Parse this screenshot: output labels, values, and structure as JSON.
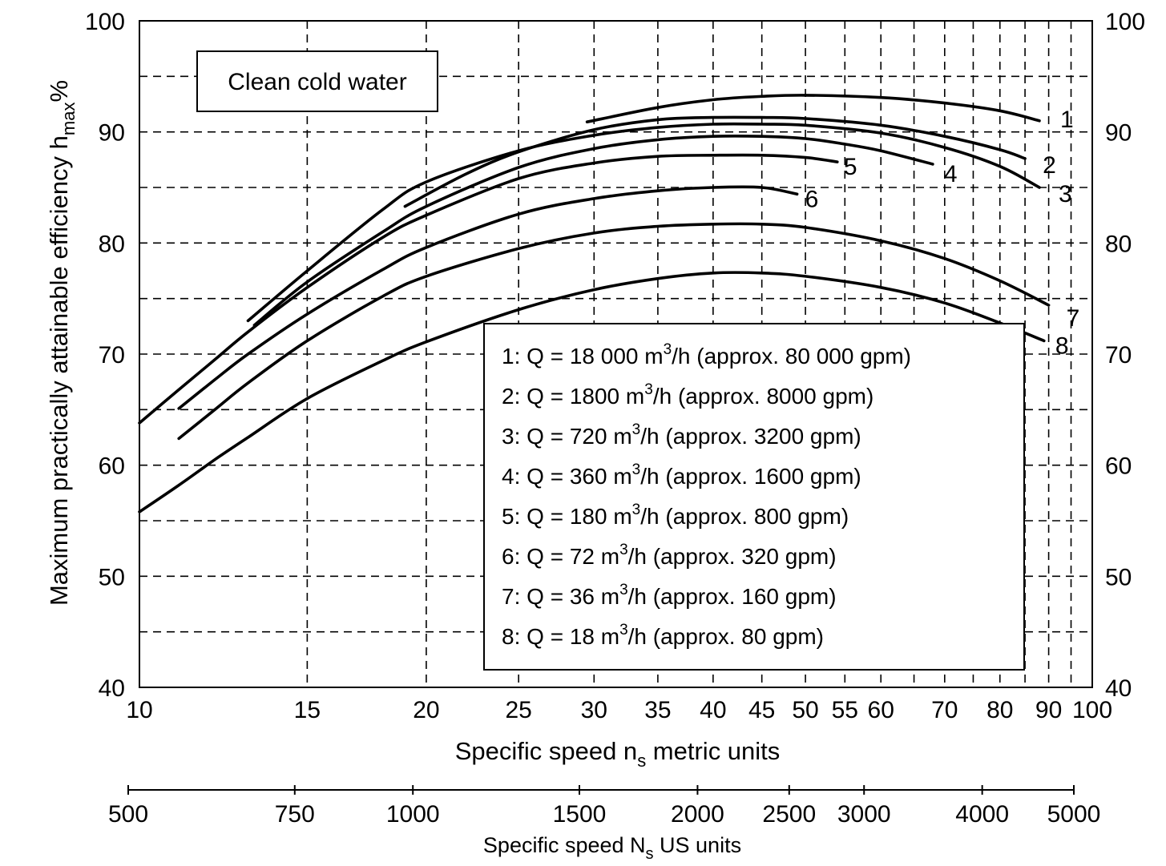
{
  "chart_data": {
    "type": "line",
    "xlabel": "Specific speed n",
    "xlabel_sub": "s",
    "xlabel_suffix": " metric units",
    "ylabel": "Maximum practically attainable efficiency h",
    "ylabel_sub": "max",
    "ylabel_suffix": "%",
    "x2label": "Specific speed N",
    "x2label_sub": "s",
    "x2label_suffix": " US units",
    "xscale": "log",
    "xlim": [
      10,
      100
    ],
    "ylim": [
      40,
      100
    ],
    "x_ticks": [
      10,
      15,
      20,
      25,
      30,
      35,
      40,
      45,
      50,
      55,
      60,
      70,
      80,
      90,
      100
    ],
    "y_ticks": [
      40,
      50,
      60,
      70,
      80,
      90,
      100
    ],
    "x2_ticks": [
      500,
      750,
      1000,
      1500,
      2000,
      2500,
      3000,
      4000,
      5000
    ],
    "grid": "dashed",
    "annotation": "Clean cold water",
    "series": [
      {
        "name": "1",
        "x": [
          29.5,
          35,
          40,
          45,
          50,
          60,
          70,
          80,
          88
        ],
        "y": [
          90.9,
          92.2,
          92.9,
          93.2,
          93.3,
          93.1,
          92.6,
          91.9,
          91.0
        ]
      },
      {
        "name": "2",
        "x": [
          19,
          22,
          25,
          30,
          35,
          40,
          45,
          50,
          60,
          70,
          80,
          85
        ],
        "y": [
          83.3,
          86.2,
          88.2,
          90.2,
          91.1,
          91.3,
          91.3,
          91.2,
          90.6,
          89.6,
          88.4,
          87.6
        ]
      },
      {
        "name": "3",
        "x": [
          13,
          15,
          18,
          20,
          25,
          30,
          35,
          40,
          45,
          50,
          60,
          70,
          80,
          88
        ],
        "y": [
          73.0,
          77.5,
          83.0,
          85.5,
          88.3,
          89.7,
          90.4,
          90.7,
          90.7,
          90.6,
          89.9,
          88.6,
          86.9,
          85.0
        ]
      },
      {
        "name": "4",
        "x": [
          13.2,
          15,
          18,
          20,
          25,
          30,
          35,
          40,
          45,
          50,
          55,
          60,
          68
        ],
        "y": [
          72.6,
          76.5,
          81.0,
          83.3,
          86.8,
          88.5,
          89.3,
          89.6,
          89.6,
          89.4,
          88.9,
          88.3,
          87.1
        ]
      },
      {
        "name": "5",
        "x": [
          10,
          11,
          12,
          13,
          15,
          18,
          20,
          25,
          30,
          35,
          40,
          45,
          50,
          54
        ],
        "y": [
          63.8,
          66.8,
          69.5,
          72.0,
          76.0,
          80.5,
          82.5,
          85.8,
          87.2,
          87.8,
          87.9,
          87.9,
          87.7,
          87.3
        ]
      },
      {
        "name": "6",
        "x": [
          11,
          12,
          13,
          15,
          18,
          20,
          25,
          30,
          35,
          40,
          45,
          49
        ],
        "y": [
          65.1,
          67.7,
          70.0,
          73.6,
          77.6,
          79.6,
          82.6,
          84.0,
          84.7,
          85.0,
          85.0,
          84.4
        ]
      },
      {
        "name": "7",
        "x": [
          11,
          12,
          13,
          15,
          18,
          20,
          25,
          30,
          35,
          40,
          45,
          50,
          60,
          70,
          80,
          90
        ],
        "y": [
          62.4,
          65.0,
          67.4,
          71.2,
          75.2,
          77.0,
          79.5,
          80.9,
          81.5,
          81.7,
          81.7,
          81.4,
          80.2,
          78.6,
          76.6,
          74.4
        ]
      },
      {
        "name": "8",
        "x": [
          10,
          11,
          12,
          13,
          15,
          18,
          20,
          25,
          30,
          35,
          40,
          45,
          50,
          60,
          70,
          80,
          89
        ],
        "y": [
          55.8,
          58.2,
          60.5,
          62.5,
          66.0,
          69.4,
          71.1,
          74.0,
          75.8,
          76.8,
          77.3,
          77.3,
          77.0,
          76.0,
          74.6,
          72.8,
          71.2
        ]
      }
    ],
    "legend": [
      {
        "key": "1:",
        "text": "Q = 18 000 m",
        "sup": "3",
        "after": "/h (approx. 80 000 gpm)"
      },
      {
        "key": "2:",
        "text": "Q = 1800 m",
        "sup": "3",
        "after": "/h (approx. 8000 gpm)"
      },
      {
        "key": "3:",
        "text": "Q = 720 m",
        "sup": "3",
        "after": "/h (approx. 3200 gpm)"
      },
      {
        "key": "4:",
        "text": "Q = 360 m",
        "sup": "3",
        "after": "/h (approx. 1600 gpm)"
      },
      {
        "key": "5:",
        "text": "Q = 180 m",
        "sup": "3",
        "after": "/h (approx. 800 gpm)"
      },
      {
        "key": "6:",
        "text": "Q = 72 m",
        "sup": "3",
        "after": "/h (approx. 320 gpm)"
      },
      {
        "key": "7:",
        "text": "Q = 36 m",
        "sup": "3",
        "after": "/h (approx. 160 gpm)"
      },
      {
        "key": "8:",
        "text": "Q = 18 m",
        "sup": "3",
        "after": "/h (approx. 80 gpm)"
      }
    ],
    "legend_placement": "bottom-right",
    "line_color": "#000000"
  }
}
